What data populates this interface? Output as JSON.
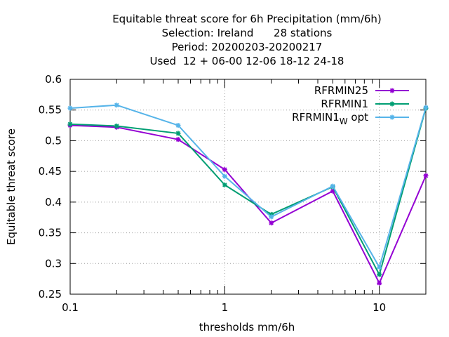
{
  "chart_data": {
    "type": "line",
    "title_lines": [
      "Equitable threat score  for 6h Precipitation (mm/6h)",
      "Selection: Ireland      28 stations",
      "Period: 20200203-20200217",
      "Used  12 + 06-00 12-06 18-12 24-18"
    ],
    "xlabel": "thresholds mm/6h",
    "ylabel": "Equitable threat score",
    "x_scale": "log",
    "xlim": [
      0.1,
      20
    ],
    "ylim": [
      0.25,
      0.6
    ],
    "x_ticks": [
      {
        "value": 0.1,
        "label": "0.1"
      },
      {
        "value": 1,
        "label": "1"
      },
      {
        "value": 10,
        "label": "10"
      }
    ],
    "y_ticks": [
      {
        "value": 0.25,
        "label": "0.25"
      },
      {
        "value": 0.3,
        "label": "0.3"
      },
      {
        "value": 0.35,
        "label": "0.35"
      },
      {
        "value": 0.4,
        "label": "0.4"
      },
      {
        "value": 0.45,
        "label": "0.45"
      },
      {
        "value": 0.5,
        "label": "0.5"
      },
      {
        "value": 0.55,
        "label": "0.55"
      },
      {
        "value": 0.6,
        "label": "0.6"
      }
    ],
    "grid": true,
    "legend_position": "top-right",
    "x": [
      0.1,
      0.2,
      0.5,
      1,
      2,
      5,
      10,
      20
    ],
    "series": [
      {
        "name": "RFRMIN25",
        "color": "#9400d3",
        "values": [
          0.525,
          0.522,
          0.502,
          0.453,
          0.366,
          0.418,
          0.268,
          0.443
        ]
      },
      {
        "name": "RFRMIN1",
        "color": "#009e73",
        "values": [
          0.527,
          0.524,
          0.512,
          0.428,
          0.38,
          0.425,
          0.282,
          0.553
        ]
      },
      {
        "name": "RFRMIN1",
        "name_subscript": "W",
        "name_suffix": "opt",
        "color": "#56b4e9",
        "values": [
          0.553,
          0.558,
          0.525,
          0.442,
          0.376,
          0.426,
          0.294,
          0.554
        ]
      }
    ]
  }
}
